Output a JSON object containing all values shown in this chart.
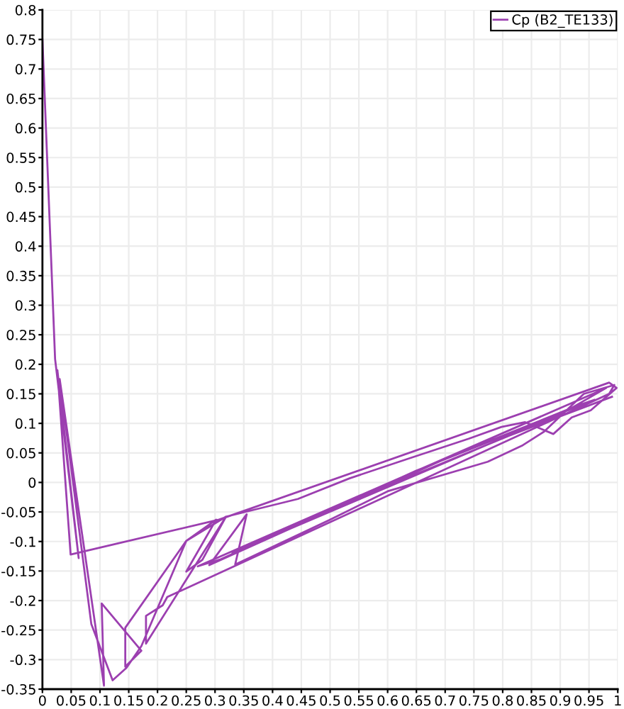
{
  "chart_data": {
    "type": "line",
    "series": [
      {
        "name": "Cp (B2_TE133)",
        "color": "#9c3fb0",
        "x": [
          0.0,
          0.022,
          0.063,
          0.026,
          0.049,
          0.307,
          0.985,
          0.998,
          0.953,
          0.92,
          0.888,
          0.839,
          0.798,
          0.741,
          0.632,
          0.534,
          0.444,
          0.319,
          0.278,
          0.25,
          0.302,
          0.25,
          0.172,
          0.146,
          0.122,
          0.085,
          0.03,
          0.107,
          0.103,
          0.172,
          0.144,
          0.144,
          0.25,
          0.319,
          0.18,
          0.18,
          0.209,
          0.217,
          0.985,
          0.994,
          0.941,
          0.872,
          0.835,
          0.774,
          0.6,
          0.498,
          0.335,
          0.355,
          0.29,
          0.7,
          0.93,
          0.96,
          0.65,
          0.31,
          0.27,
          0.98,
          0.9,
          0.54,
          0.33,
          0.8,
          0.99
        ],
        "values": [
          0.75,
          0.209,
          -0.128,
          0.19,
          -0.122,
          -0.063,
          0.169,
          0.16,
          0.122,
          0.11,
          0.082,
          0.102,
          0.094,
          0.074,
          0.039,
          0.007,
          -0.028,
          -0.058,
          -0.131,
          -0.151,
          -0.063,
          -0.099,
          -0.277,
          -0.314,
          -0.335,
          -0.24,
          0.175,
          -0.344,
          -0.205,
          -0.285,
          -0.312,
          -0.246,
          -0.099,
          -0.058,
          -0.273,
          -0.226,
          -0.208,
          -0.194,
          0.15,
          0.165,
          0.15,
          0.086,
          0.063,
          0.035,
          -0.015,
          -0.064,
          -0.139,
          -0.054,
          -0.14,
          0.04,
          0.13,
          0.14,
          0.02,
          -0.13,
          -0.142,
          0.16,
          0.115,
          -0.03,
          -0.12,
          0.075,
          0.145
        ]
      }
    ],
    "xlim": [
      0,
      1
    ],
    "ylim": [
      -0.35,
      0.8
    ],
    "xticks": [
      0,
      0.05,
      0.1,
      0.15,
      0.2,
      0.25,
      0.3,
      0.35,
      0.4,
      0.45,
      0.5,
      0.55,
      0.6,
      0.65,
      0.7,
      0.75,
      0.8,
      0.85,
      0.9,
      0.95,
      1
    ],
    "yticks": [
      -0.35,
      -0.3,
      -0.25,
      -0.2,
      -0.15,
      -0.1,
      -0.05,
      0,
      0.05,
      0.1,
      0.15,
      0.2,
      0.25,
      0.3,
      0.35,
      0.4,
      0.45,
      0.5,
      0.55,
      0.6,
      0.65,
      0.7,
      0.75,
      0.8
    ],
    "grid": true,
    "legend": "top right",
    "marker": "none",
    "line_style": "solid"
  }
}
